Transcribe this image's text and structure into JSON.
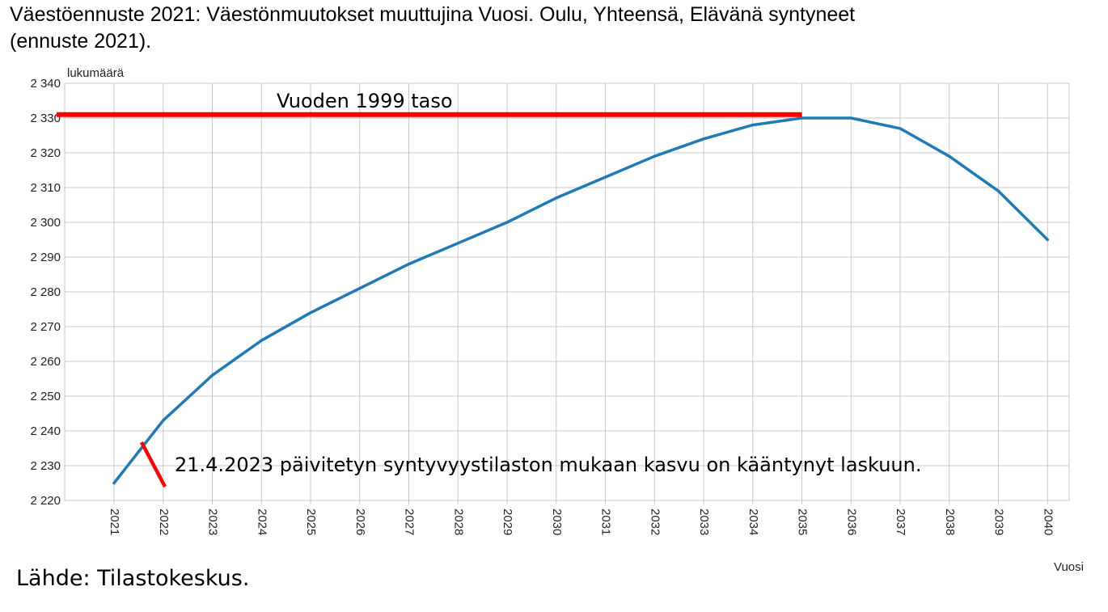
{
  "title_line1": "Väestöennuste 2021: Väestönmuutokset muuttujina Vuosi. Oulu, Yhteensä, Elävänä syntyneet",
  "title_line2": "(ennuste 2021).",
  "source": "Lähde: Tilastokeskus.",
  "chart_data": {
    "type": "line",
    "ylabel": "lukumäärä",
    "xlabel": "Vuosi",
    "ylim": [
      2220,
      2340
    ],
    "y_ticks": [
      2220,
      2230,
      2240,
      2250,
      2260,
      2270,
      2280,
      2290,
      2300,
      2310,
      2320,
      2330,
      2340
    ],
    "y_tick_labels": [
      "2 220",
      "2 230",
      "2 240",
      "2 250",
      "2 260",
      "2 270",
      "2 280",
      "2 290",
      "2 300",
      "2 310",
      "2 320",
      "2 330",
      "2 340"
    ],
    "x": [
      "2021",
      "2022",
      "2023",
      "2024",
      "2025",
      "2026",
      "2027",
      "2028",
      "2029",
      "2030",
      "2031",
      "2032",
      "2033",
      "2034",
      "2035",
      "2036",
      "2037",
      "2038",
      "2039",
      "2040"
    ],
    "series": [
      {
        "values": [
          2225,
          2243,
          2256,
          2266,
          2274,
          2281,
          2288,
          2294,
          2300,
          2307,
          2313,
          2319,
          2324,
          2328,
          2330,
          2330,
          2327,
          2319,
          2309,
          2295
        ],
        "color": "#1f7ab8"
      }
    ],
    "grid": true,
    "annotations": [
      {
        "text": "Vuoden 1999 taso",
        "type": "hline",
        "y": 2331,
        "x_to": "2035",
        "color": "#ff0000"
      },
      {
        "text": "21.4.2023 päivitetyn syntyvyystilaston mukaan kasvu on kääntynyt laskuun.",
        "type": "slash-marker",
        "x_at": "2022",
        "color": "#ff0000"
      }
    ]
  }
}
